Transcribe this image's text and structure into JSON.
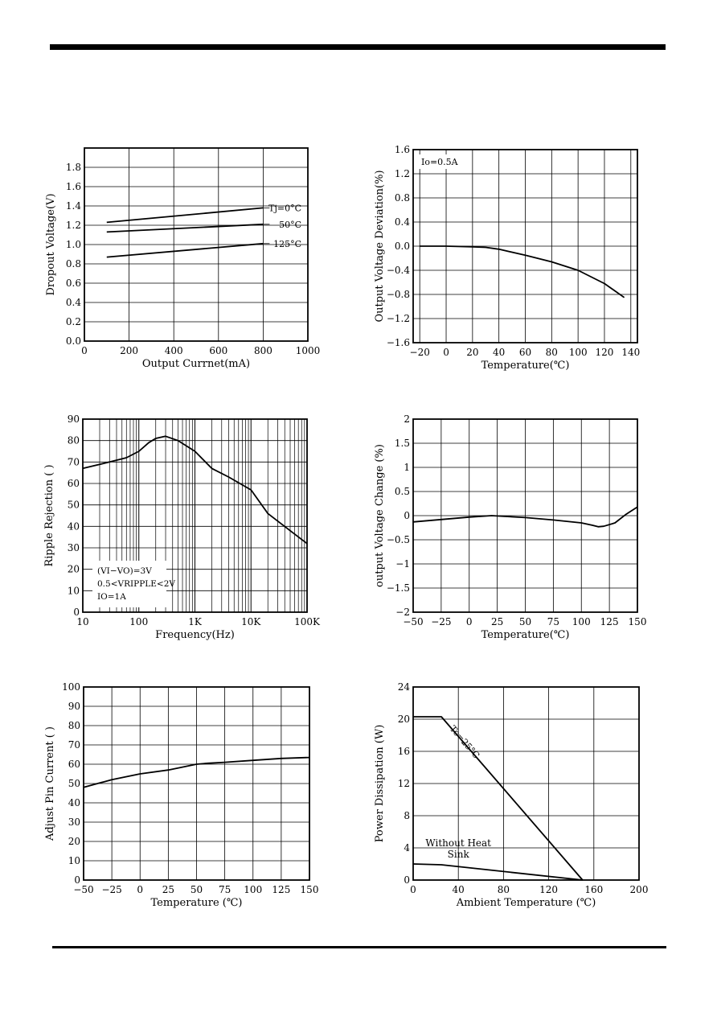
{
  "chart_data": [
    {
      "id": "c1",
      "type": "line",
      "xlabel": "Output Currnet(mA)",
      "ylabel": "Dropout Voltage(V)",
      "xlim": [
        0,
        1000
      ],
      "ylim": [
        0,
        2.0
      ],
      "xticks": [
        0,
        200,
        400,
        600,
        800,
        1000
      ],
      "yticks": [
        0.0,
        0.2,
        0.4,
        0.6,
        0.8,
        1.0,
        1.2,
        1.4,
        1.6,
        1.8
      ],
      "ytick_labels": [
        "0.0",
        "0.2",
        "0.4",
        "0.6",
        "0.8",
        "1.0",
        "1.2",
        "1.4",
        "1.6",
        "1.8"
      ],
      "grid": true,
      "series": [
        {
          "name": "Tj=0°C",
          "x": [
            100,
            800
          ],
          "y": [
            1.23,
            1.38
          ]
        },
        {
          "name": "50°C",
          "x": [
            100,
            800
          ],
          "y": [
            1.13,
            1.21
          ]
        },
        {
          "name": "125°C",
          "x": [
            100,
            800
          ],
          "y": [
            0.87,
            1.01
          ]
        }
      ]
    },
    {
      "id": "c2",
      "type": "line",
      "xlabel": "Temperature(℃)",
      "ylabel": "Output Voltage Deviation(%)",
      "xlim": [
        -25,
        145
      ],
      "ylim": [
        -1.6,
        1.6
      ],
      "xticks": [
        -20,
        0,
        20,
        40,
        60,
        80,
        100,
        120,
        140
      ],
      "xtick_labels": [
        "−20",
        "0",
        "20",
        "40",
        "60",
        "80",
        "100",
        "120",
        "140"
      ],
      "yticks": [
        -1.6,
        -1.2,
        -0.8,
        -0.4,
        0.0,
        0.4,
        0.8,
        1.2,
        1.6
      ],
      "ytick_labels": [
        "−1.6",
        "−1.2",
        "−0.8",
        "−0.4",
        "0.0",
        "0.4",
        "0.8",
        "1.2",
        "1.6"
      ],
      "grid": true,
      "annotation": "Io=0.5A",
      "series": [
        {
          "x": [
            -20,
            0,
            20,
            30,
            40,
            60,
            80,
            100,
            120,
            135
          ],
          "y": [
            0.0,
            0.0,
            -0.01,
            -0.02,
            -0.05,
            -0.15,
            -0.26,
            -0.4,
            -0.62,
            -0.85
          ]
        }
      ]
    },
    {
      "id": "c3",
      "type": "line",
      "xscale": "log",
      "xlabel": "Frequency(Hz)",
      "ylabel": "Ripple Rejection ( )",
      "xlim": [
        10,
        100000
      ],
      "ylim": [
        0,
        90
      ],
      "xticks": [
        10,
        100,
        1000,
        10000,
        100000
      ],
      "xtick_labels": [
        "10",
        "100",
        "1K",
        "10K",
        "100K"
      ],
      "yticks": [
        0,
        10,
        20,
        30,
        40,
        50,
        60,
        70,
        80,
        90
      ],
      "grid": true,
      "annotations": [
        "(VI−VO)=3V",
        "0.5<VRIPPLE<2V",
        "IO=1A"
      ],
      "series": [
        {
          "x": [
            10,
            30,
            60,
            100,
            150,
            200,
            300,
            500,
            1000,
            2000,
            4000,
            10000,
            20000,
            50000,
            100000
          ],
          "y": [
            67,
            70,
            72,
            75,
            79,
            81,
            82,
            80,
            75,
            67,
            63,
            57,
            46,
            38,
            32
          ]
        }
      ]
    },
    {
      "id": "c4",
      "type": "line",
      "xlabel": "Temperature(℃)",
      "ylabel": "output Voltage Change (%)",
      "xlim": [
        -50,
        150
      ],
      "ylim": [
        -2,
        2
      ],
      "xticks": [
        -50,
        -25,
        0,
        25,
        50,
        75,
        100,
        125,
        150
      ],
      "xtick_labels": [
        "−50",
        "−25",
        "0",
        "25",
        "50",
        "75",
        "100",
        "125",
        "150"
      ],
      "yticks": [
        -2,
        -1.5,
        -1,
        -0.5,
        0,
        0.5,
        1,
        1.5,
        2
      ],
      "ytick_labels": [
        "−2",
        "−1.5",
        "−1",
        "−0.5",
        "0",
        "0.5",
        "1",
        "1.5",
        "2"
      ],
      "grid": true,
      "series": [
        {
          "x": [
            -50,
            -25,
            0,
            20,
            50,
            75,
            100,
            110,
            115,
            120,
            130,
            140,
            150
          ],
          "y": [
            -0.13,
            -0.08,
            -0.03,
            0.0,
            -0.04,
            -0.09,
            -0.15,
            -0.2,
            -0.23,
            -0.22,
            -0.15,
            0.03,
            0.18
          ]
        }
      ]
    },
    {
      "id": "c5",
      "type": "line",
      "xlabel": "Temperature (℃)",
      "ylabel": "Adjust Pin Current ( )",
      "xlim": [
        -50,
        150
      ],
      "ylim": [
        0,
        100
      ],
      "xticks": [
        -50,
        -25,
        0,
        25,
        50,
        75,
        100,
        125,
        150
      ],
      "xtick_labels": [
        "−50",
        "−25",
        "0",
        "25",
        "50",
        "75",
        "100",
        "125",
        "150"
      ],
      "yticks": [
        0,
        10,
        20,
        30,
        40,
        50,
        60,
        70,
        80,
        90,
        100
      ],
      "grid": true,
      "series": [
        {
          "x": [
            -50,
            -25,
            0,
            25,
            50,
            60,
            75,
            100,
            125,
            150
          ],
          "y": [
            48,
            52,
            55,
            57,
            60,
            60.5,
            61,
            62,
            63,
            63.5
          ]
        }
      ]
    },
    {
      "id": "c6",
      "type": "line",
      "xlabel": "Ambient Temperature (℃)",
      "ylabel": "Power Dissipation (W)",
      "xlim": [
        0,
        200
      ],
      "ylim": [
        0,
        24
      ],
      "xticks": [
        0,
        40,
        80,
        120,
        160,
        200
      ],
      "yticks": [
        0,
        4,
        8,
        12,
        16,
        20,
        24
      ],
      "grid": true,
      "series": [
        {
          "name": "Tc=25°C",
          "x": [
            0,
            25,
            150
          ],
          "y": [
            20.3,
            20.3,
            0
          ]
        },
        {
          "name": "Without Heat Sink",
          "x": [
            0,
            25,
            150
          ],
          "y": [
            2.0,
            1.9,
            0
          ]
        }
      ]
    }
  ]
}
